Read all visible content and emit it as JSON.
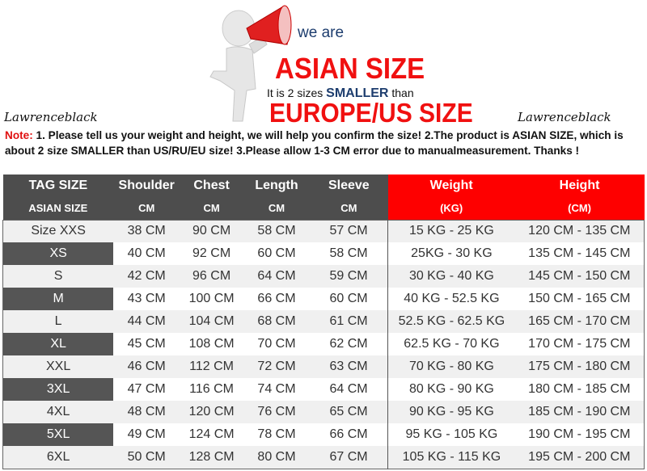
{
  "banner": {
    "we_are": "we are",
    "asian_size": "ASIAN SIZE",
    "subtitle_pre": "It is 2 sizes",
    "subtitle_emph": "SMALLER",
    "subtitle_post": "than",
    "europe_us": "EUROPE/US SIZE",
    "brand_left": "Lawrenceblack",
    "brand_right": "Lawrenceblack"
  },
  "note": {
    "label": "Note:",
    "text": "1. Please tell us your weight and height, we will help you confirm the size!  2.The product is ASIAN SIZE, which is about 2 size SMALLER than US/RU/EU size!  3.Please allow 1-3 CM error due to manualmeasurement. Thanks !"
  },
  "colors": {
    "header_dark": "#4d4d4d",
    "header_red": "#fe0000",
    "accent_red": "#f01010",
    "navy": "#1d3d6e"
  },
  "table": {
    "header_row1": [
      "TAG SIZE",
      "Shoulder",
      "Chest",
      "Length",
      "Sleeve",
      "Weight",
      "Height"
    ],
    "header_row2": [
      "ASIAN SIZE",
      "CM",
      "CM",
      "CM",
      "CM",
      "(KG)",
      "(CM)"
    ],
    "rows": [
      [
        "Size XXS",
        "38 CM",
        "90 CM",
        "58 CM",
        "57 CM",
        "15 KG - 25 KG",
        "120 CM  - 135 CM"
      ],
      [
        "XS",
        "40 CM",
        "92 CM",
        "60 CM",
        "58 CM",
        "25KG  - 30 KG",
        "135 CM - 145 CM"
      ],
      [
        "S",
        "42 CM",
        "96 CM",
        "64 CM",
        "59 CM",
        "30 KG - 40 KG",
        "145 CM  - 150 CM"
      ],
      [
        "M",
        "43 CM",
        "100 CM",
        "66 CM",
        "60 CM",
        "40 KG - 52.5 KG",
        "150 CM  - 165 CM"
      ],
      [
        "L",
        "44 CM",
        "104 CM",
        "68 CM",
        "61 CM",
        "52.5 KG  - 62.5 KG",
        "165 CM  - 170 CM"
      ],
      [
        "XL",
        "45 CM",
        "108 CM",
        "70 CM",
        "62 CM",
        "62.5 KG - 70 KG",
        "170 CM  - 175 CM"
      ],
      [
        "XXL",
        "46 CM",
        "112 CM",
        "72 CM",
        "63 CM",
        "70 KG  - 80  KG",
        "175 CM  - 180 CM"
      ],
      [
        "3XL",
        "47 CM",
        "116 CM",
        "74 CM",
        "64 CM",
        "80 KG  - 90  KG",
        "180 CM  - 185 CM"
      ],
      [
        "4XL",
        "48 CM",
        "120 CM",
        "76 CM",
        "65 CM",
        "90 KG  - 95 KG",
        "185 CM  - 190 CM"
      ],
      [
        "5XL",
        "49 CM",
        "124 CM",
        "78 CM",
        "66 CM",
        "95 KG - 105 KG",
        "190 CM  - 195 CM"
      ],
      [
        "6XL",
        "50 CM",
        "128 CM",
        "80 CM",
        "67 CM",
        "105 KG - 115 KG",
        "195 CM  - 200 CM"
      ]
    ]
  }
}
